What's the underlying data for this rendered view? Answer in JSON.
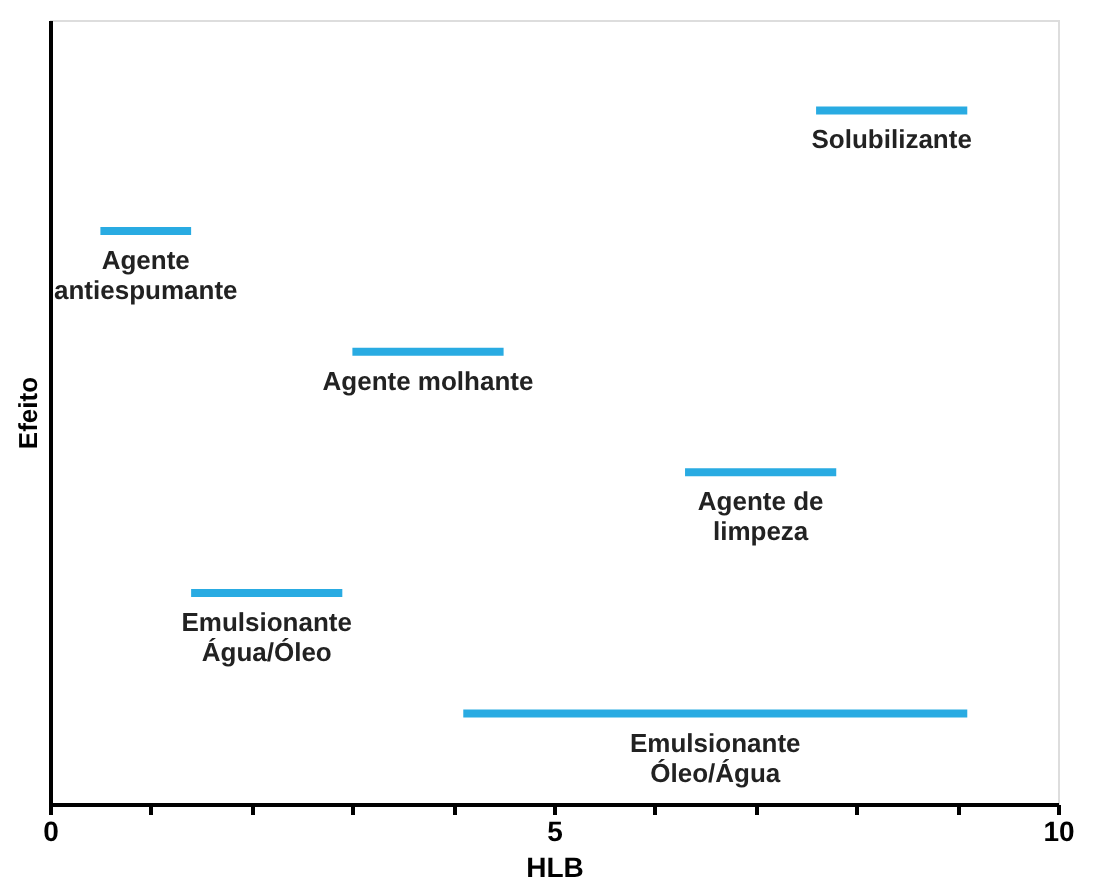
{
  "chart_data": {
    "type": "bar",
    "orientation": "horizontal",
    "xlabel": "HLB",
    "ylabel": "Efeito",
    "categories": [
      "Solubilizante",
      "Agente\nantiespumante",
      "Agente molhante",
      "Agente de\nlimpeza",
      "Emulsionante\nÁgua/Óleo",
      "Emulsionante\nÓleo/Água"
    ],
    "base": [
      7.6,
      0.5,
      3.0,
      6.3,
      1.4,
      4.1
    ],
    "values": [
      1.5,
      0.9,
      1.5,
      1.5,
      1.5,
      5.0
    ],
    "color": "#29abe2",
    "xlim": [
      0,
      10
    ],
    "xticks": [
      0,
      {
        "value": 1,
        "label": null
      },
      {
        "value": 2,
        "label": null
      },
      {
        "value": 3,
        "label": null
      },
      {
        "value": 4,
        "label": null
      },
      5,
      {
        "value": 6,
        "label": null
      },
      {
        "value": 7,
        "label": null
      },
      {
        "value": 8,
        "label": null
      },
      {
        "value": 9,
        "label": null
      },
      10
    ],
    "tick_labels": "x",
    "grid": false
  }
}
